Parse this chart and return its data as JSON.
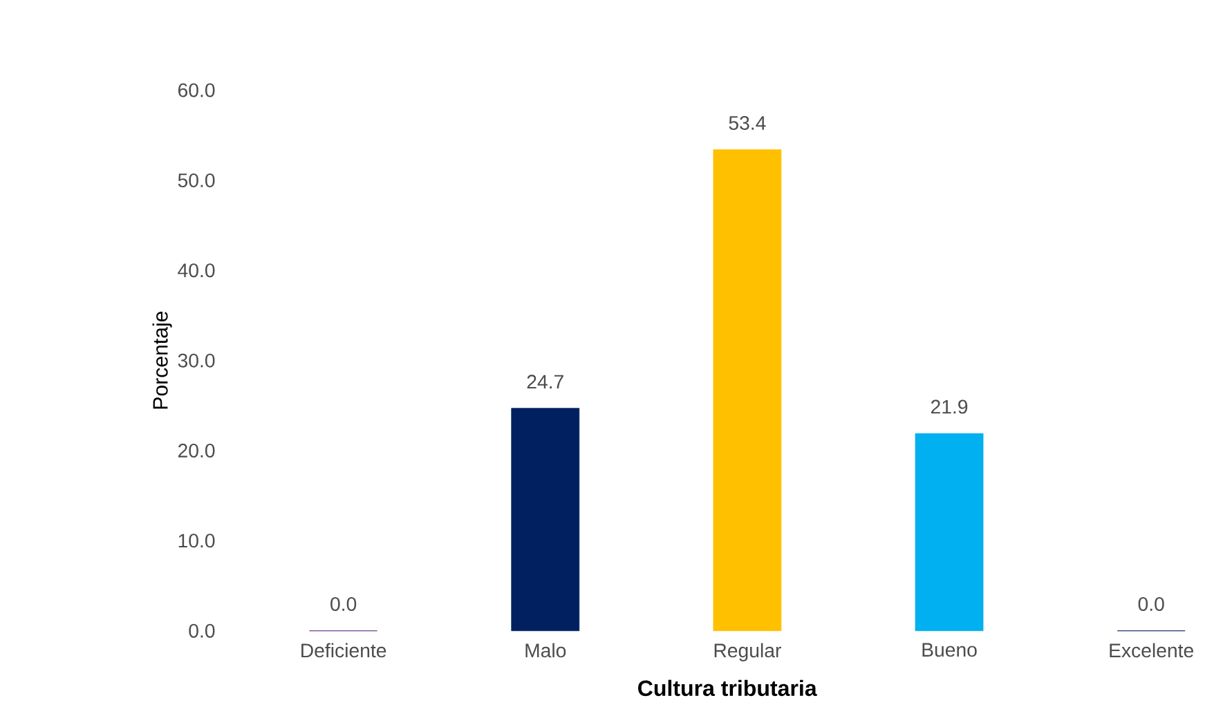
{
  "chart_data": {
    "type": "bar",
    "xlabel": "Cultura tributaria",
    "ylabel": "Porcentaje",
    "categories": [
      "Deficiente",
      "Malo",
      "Regular",
      "Bueno",
      "Excelente"
    ],
    "values": [
      0.0,
      24.7,
      53.4,
      21.9,
      0.0
    ],
    "colors": [
      "#5b2d8e",
      "#002060",
      "#ffc000",
      "#00b0f0",
      "#002060"
    ],
    "value_labels": [
      "0.0",
      "24.7",
      "53.4",
      "21.9",
      "0.0"
    ],
    "ylim": [
      0,
      60
    ],
    "yticks": [
      {
        "value": 0,
        "label": "0.0"
      },
      {
        "value": 10,
        "label": "10.0"
      },
      {
        "value": 20,
        "label": "20.0"
      },
      {
        "value": 30,
        "label": "30.0"
      },
      {
        "value": 40,
        "label": "40.0"
      },
      {
        "value": 50,
        "label": "50.0"
      },
      {
        "value": 60,
        "label": "60.0"
      }
    ],
    "grid": false
  }
}
